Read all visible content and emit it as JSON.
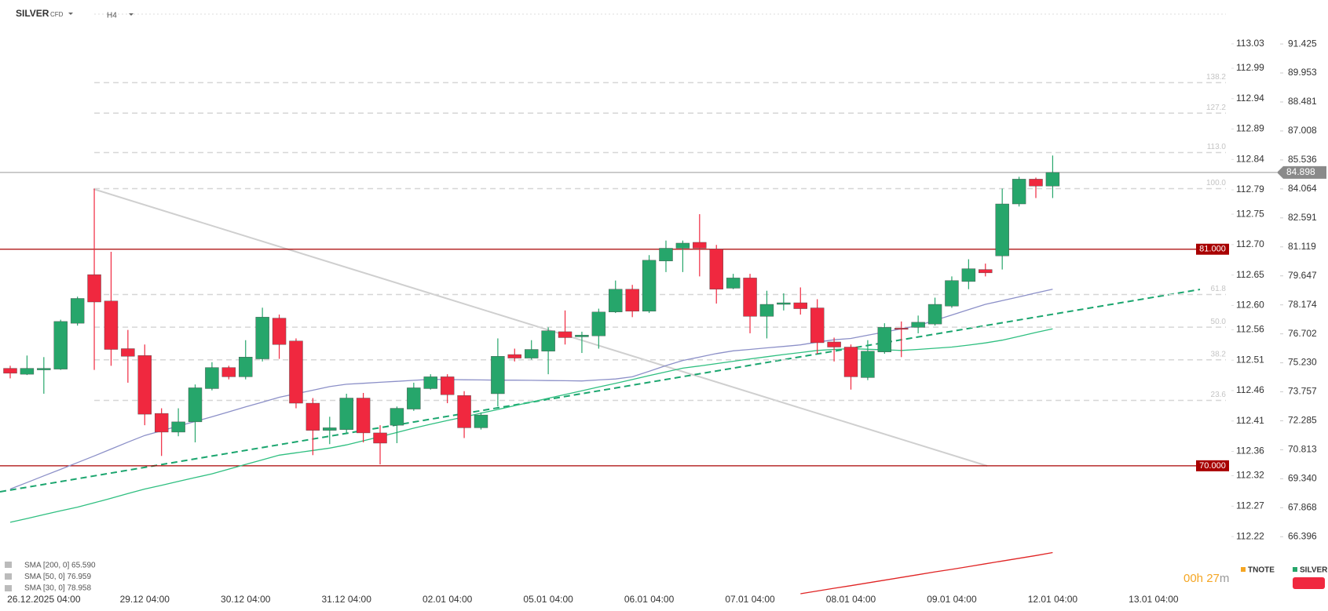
{
  "header": {
    "symbol": "SILVER",
    "instrument_type": "CFD",
    "timeframe": "H4"
  },
  "chart_data": {
    "type": "candlestick",
    "categories": [
      null,
      null,
      "26.12.2025 04:00",
      null,
      null,
      null,
      null,
      null,
      "29.12 04:00",
      null,
      null,
      null,
      null,
      null,
      "30.12 04:00",
      null,
      null,
      null,
      null,
      null,
      "31.12 04:00",
      null,
      null,
      null,
      null,
      null,
      "02.01 04:00",
      null,
      null,
      null,
      null,
      null,
      "05.01 04:00",
      null,
      null,
      null,
      null,
      null,
      "06.01 04:00",
      null,
      null,
      null,
      null,
      null,
      "07.01 04:00",
      null,
      null,
      null,
      null,
      null,
      "08.01 04:00",
      null,
      null,
      null,
      null,
      null,
      "09.01 04:00",
      null,
      null,
      null,
      null,
      null,
      "12.01 04:00",
      null,
      null,
      null,
      null,
      null,
      "13.01 04:00"
    ],
    "open": [
      74.95,
      74.65,
      74.87,
      74.91,
      77.24,
      79.71,
      78.37,
      75.95,
      75.6,
      72.66,
      71.71,
      72.23,
      73.92,
      74.99,
      74.52,
      75.43,
      77.5,
      76.34,
      73.18,
      71.8,
      71.84,
      73.44,
      71.67,
      72.06,
      72.88,
      73.92,
      74.52,
      73.57,
      71.93,
      73.66,
      75.65,
      75.47,
      75.82,
      76.81,
      76.55,
      76.6,
      77.81,
      78.97,
      77.85,
      80.4,
      81.05,
      81.35,
      81.01,
      79.02,
      79.54,
      77.59,
      78.2,
      78.28,
      78.02,
      76.29,
      76.03,
      74.48,
      75.78,
      76.99,
      77.03,
      77.2,
      78.11,
      79.36,
      79.97,
      80.66,
      83.3,
      84.56,
      84.21,
      null,
      null,
      null,
      null,
      null,
      null
    ],
    "high": [
      75.08,
      75.6,
      75.52,
      77.42,
      78.59,
      84.08,
      80.87,
      76.9,
      76.16,
      72.92,
      72.92,
      74.13,
      75.26,
      75.08,
      76.38,
      78.03,
      77.68,
      76.47,
      73.44,
      72.49,
      73.66,
      73.7,
      72.06,
      73.01,
      74.22,
      74.65,
      74.65,
      73.79,
      72.71,
      76.47,
      75.95,
      76.38,
      77.03,
      77.89,
      76.81,
      77.98,
      79.41,
      79.19,
      80.7,
      81.44,
      81.44,
      82.78,
      81.22,
      79.75,
      79.75,
      78.89,
      78.76,
      79.06,
      78.46,
      76.51,
      76.16,
      76.38,
      77.24,
      77.33,
      77.63,
      78.54,
      79.62,
      80.49,
      80.27,
      84.08,
      84.68,
      84.64,
      85.76,
      null,
      null,
      null,
      null,
      null,
      null
    ],
    "low": [
      74.44,
      74.61,
      73.66,
      74.87,
      77.12,
      74.87,
      75.08,
      74.22,
      72.06,
      70.5,
      71.5,
      71.19,
      73.83,
      74.39,
      74.39,
      75.3,
      75.43,
      72.92,
      70.54,
      71.1,
      71.63,
      71.19,
      70.07,
      71.15,
      72.79,
      73.87,
      73.18,
      71.41,
      71.84,
      73.01,
      75.3,
      75.39,
      74.65,
      76.16,
      75.73,
      75.95,
      77.76,
      77.55,
      77.76,
      79.84,
      79.84,
      79.62,
      78.24,
      78.97,
      76.73,
      76.47,
      77.89,
      77.68,
      75.69,
      75.3,
      73.87,
      74.35,
      75.69,
      75.52,
      76.73,
      77.12,
      78.02,
      78.97,
      79.62,
      79.97,
      83.17,
      83.6,
      83.6,
      null,
      null,
      null,
      null,
      null,
      null
    ],
    "close": [
      74.7,
      74.95,
      74.95,
      77.33,
      78.5,
      78.32,
      75.91,
      75.56,
      72.62,
      71.71,
      72.23,
      73.96,
      74.99,
      74.52,
      75.52,
      77.55,
      76.16,
      73.18,
      71.8,
      71.93,
      73.44,
      71.67,
      71.15,
      72.92,
      73.96,
      74.52,
      73.61,
      71.93,
      72.58,
      75.56,
      75.47,
      75.91,
      76.86,
      76.51,
      76.64,
      77.81,
      78.97,
      77.85,
      80.44,
      81.05,
      81.31,
      81.05,
      78.97,
      79.54,
      77.59,
      78.2,
      78.28,
      77.98,
      76.25,
      76.03,
      74.52,
      75.82,
      77.03,
      76.94,
      77.29,
      78.2,
      79.41,
      80.01,
      79.8,
      83.3,
      84.56,
      84.21,
      84.898,
      null,
      null,
      null,
      null,
      null,
      null
    ],
    "up_color": "#26a66b",
    "down_color": "#f0283f",
    "series": [
      {
        "name": "SMA [200, 0] 65.590",
        "color": "#e02424",
        "values": [
          null,
          null,
          null,
          null,
          null,
          null,
          null,
          null,
          null,
          null,
          null,
          null,
          null,
          null,
          null,
          null,
          null,
          null,
          null,
          null,
          null,
          null,
          null,
          null,
          null,
          null,
          null,
          null,
          null,
          null,
          null,
          null,
          null,
          null,
          null,
          null,
          null,
          null,
          null,
          null,
          null,
          null,
          null,
          null,
          null,
          null,
          null,
          63.5,
          63.64,
          63.78,
          63.91,
          64.05,
          64.19,
          64.33,
          64.47,
          64.61,
          64.74,
          64.88,
          65.02,
          65.16,
          65.3,
          65.44,
          65.59,
          null,
          null,
          null,
          null,
          null,
          null
        ]
      },
      {
        "name": "SMA [50, 0] 76.959",
        "color": "#2fbf80",
        "values": [
          67.13,
          67.32,
          67.52,
          67.71,
          67.9,
          68.12,
          68.35,
          68.59,
          68.82,
          69.01,
          69.21,
          69.4,
          69.59,
          69.83,
          70.07,
          70.3,
          70.54,
          70.66,
          70.78,
          70.9,
          71.06,
          71.27,
          71.48,
          71.69,
          71.91,
          72.11,
          72.3,
          72.48,
          72.67,
          72.86,
          73.05,
          73.24,
          73.43,
          73.62,
          73.81,
          74.0,
          74.19,
          74.38,
          74.58,
          74.77,
          74.96,
          75.07,
          75.19,
          75.31,
          75.43,
          75.54,
          75.65,
          75.75,
          75.86,
          75.91,
          75.95,
          75.92,
          75.89,
          75.86,
          75.91,
          75.97,
          76.03,
          76.13,
          76.24,
          76.38,
          76.57,
          76.77,
          76.96,
          null,
          null,
          null,
          null,
          null,
          null
        ]
      },
      {
        "name": "SMA [30, 0] 78.958",
        "color": "#8c90c8",
        "values": [
          68.82,
          69.15,
          69.49,
          69.82,
          70.16,
          70.5,
          70.85,
          71.2,
          71.54,
          71.78,
          72.02,
          72.25,
          72.49,
          72.74,
          72.99,
          73.23,
          73.48,
          73.66,
          73.84,
          74.02,
          74.14,
          74.19,
          74.24,
          74.29,
          74.34,
          74.39,
          74.38,
          74.37,
          74.36,
          74.35,
          74.35,
          74.34,
          74.33,
          74.32,
          74.31,
          74.36,
          74.41,
          74.52,
          74.8,
          75.09,
          75.35,
          75.52,
          75.7,
          75.84,
          75.91,
          75.99,
          76.06,
          76.14,
          76.28,
          76.4,
          76.47,
          76.63,
          76.79,
          76.96,
          77.12,
          77.39,
          77.66,
          77.93,
          78.2,
          78.39,
          78.58,
          78.78,
          78.97,
          null,
          null,
          null,
          null,
          null,
          null
        ]
      }
    ],
    "ylim": [
      63.5,
      93.5
    ],
    "yticks": [
      91.425,
      89.953,
      88.481,
      87.008,
      85.536,
      84.064,
      82.591,
      81.119,
      79.647,
      78.174,
      76.702,
      {
        "value": 75.23,
        "label": "75.230"
      },
      73.757,
      72.285,
      70.813,
      {
        "value": 69.34,
        "label": "69.340"
      },
      67.868,
      66.396
    ],
    "y2lim": [
      112.126,
      113.097
    ],
    "y2ticks": [
      113.03,
      112.99,
      112.94,
      112.89,
      112.84,
      112.79,
      112.75,
      {
        "value": 112.7,
        "label": "112.70"
      },
      112.65,
      {
        "value": 112.6,
        "label": "112.60"
      },
      112.56,
      112.51,
      112.46,
      112.41,
      112.36,
      112.32,
      112.27,
      112.22
    ],
    "hlines": [
      {
        "value": 81,
        "label": "81.000"
      },
      {
        "value": 70,
        "label": "70.000"
      }
    ],
    "hline_color": "#a80000",
    "last_price": {
      "value": 84.898,
      "label": "84.898"
    },
    "fib_levels": [
      {
        "value": 89.46,
        "label": "138.2"
      },
      {
        "value": 87.91,
        "label": "127.2"
      },
      {
        "value": 85.91,
        "label": "113.0"
      },
      {
        "value": 84.08,
        "label": "100.0"
      },
      {
        "value": 78.7,
        "label": "61.8"
      },
      {
        "value": 77.04,
        "label": "50.0"
      },
      {
        "value": 75.38,
        "label": "38.2"
      },
      {
        "value": 73.32,
        "label": "23.6"
      }
    ],
    "countdown": {
      "value": "00h 27",
      "unit": "m"
    },
    "symbols": [
      {
        "name": "TNOTE",
        "color": "#f5a623"
      },
      {
        "name": "SILVER",
        "color": "#26a66b"
      }
    ]
  }
}
